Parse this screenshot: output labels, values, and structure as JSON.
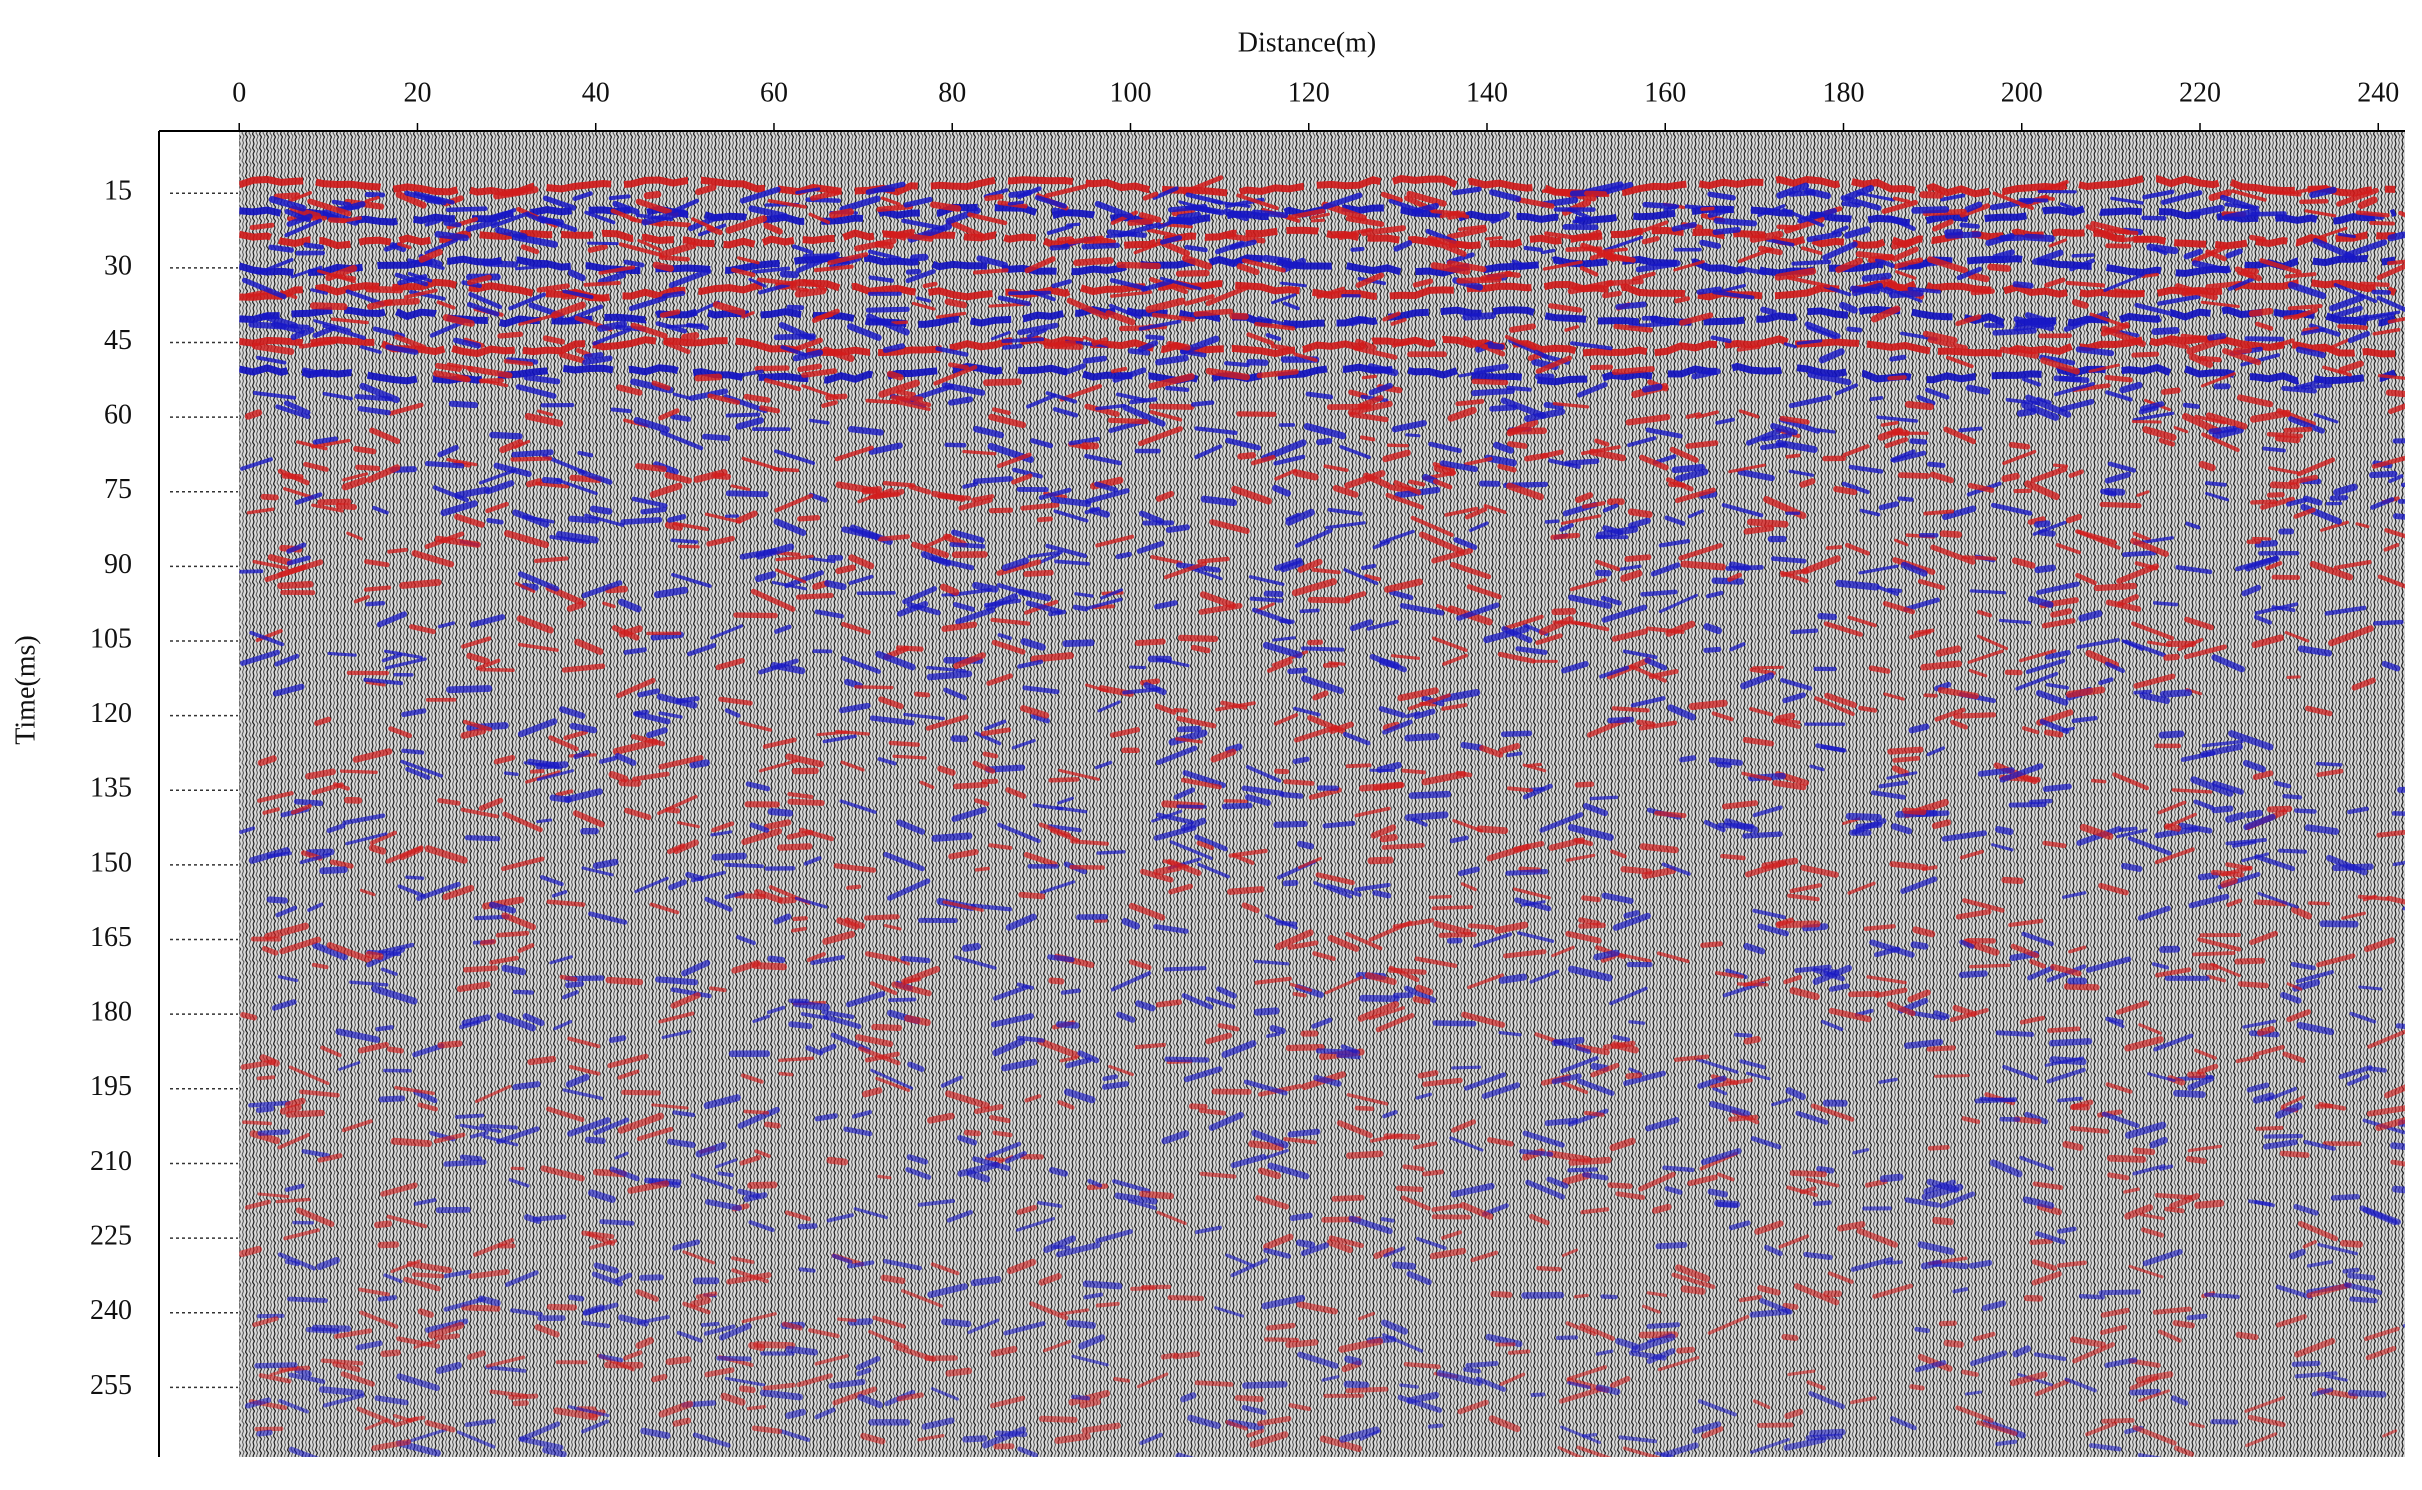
{
  "chart_data": {
    "type": "seismic",
    "x_label": "Distance(m)",
    "y_label": "Time(ms)",
    "xlim": [
      -9,
      243
    ],
    "xticks": [
      0,
      20,
      40,
      60,
      80,
      100,
      120,
      140,
      160,
      180,
      200,
      220,
      240
    ],
    "ylim": [
      2.5,
      269
    ],
    "yticks": [
      15,
      30,
      45,
      60,
      75,
      90,
      105,
      120,
      135,
      150,
      165,
      180,
      195,
      210,
      225,
      240,
      255
    ],
    "y_reversed": true,
    "x_axis_position": "top"
  }
}
